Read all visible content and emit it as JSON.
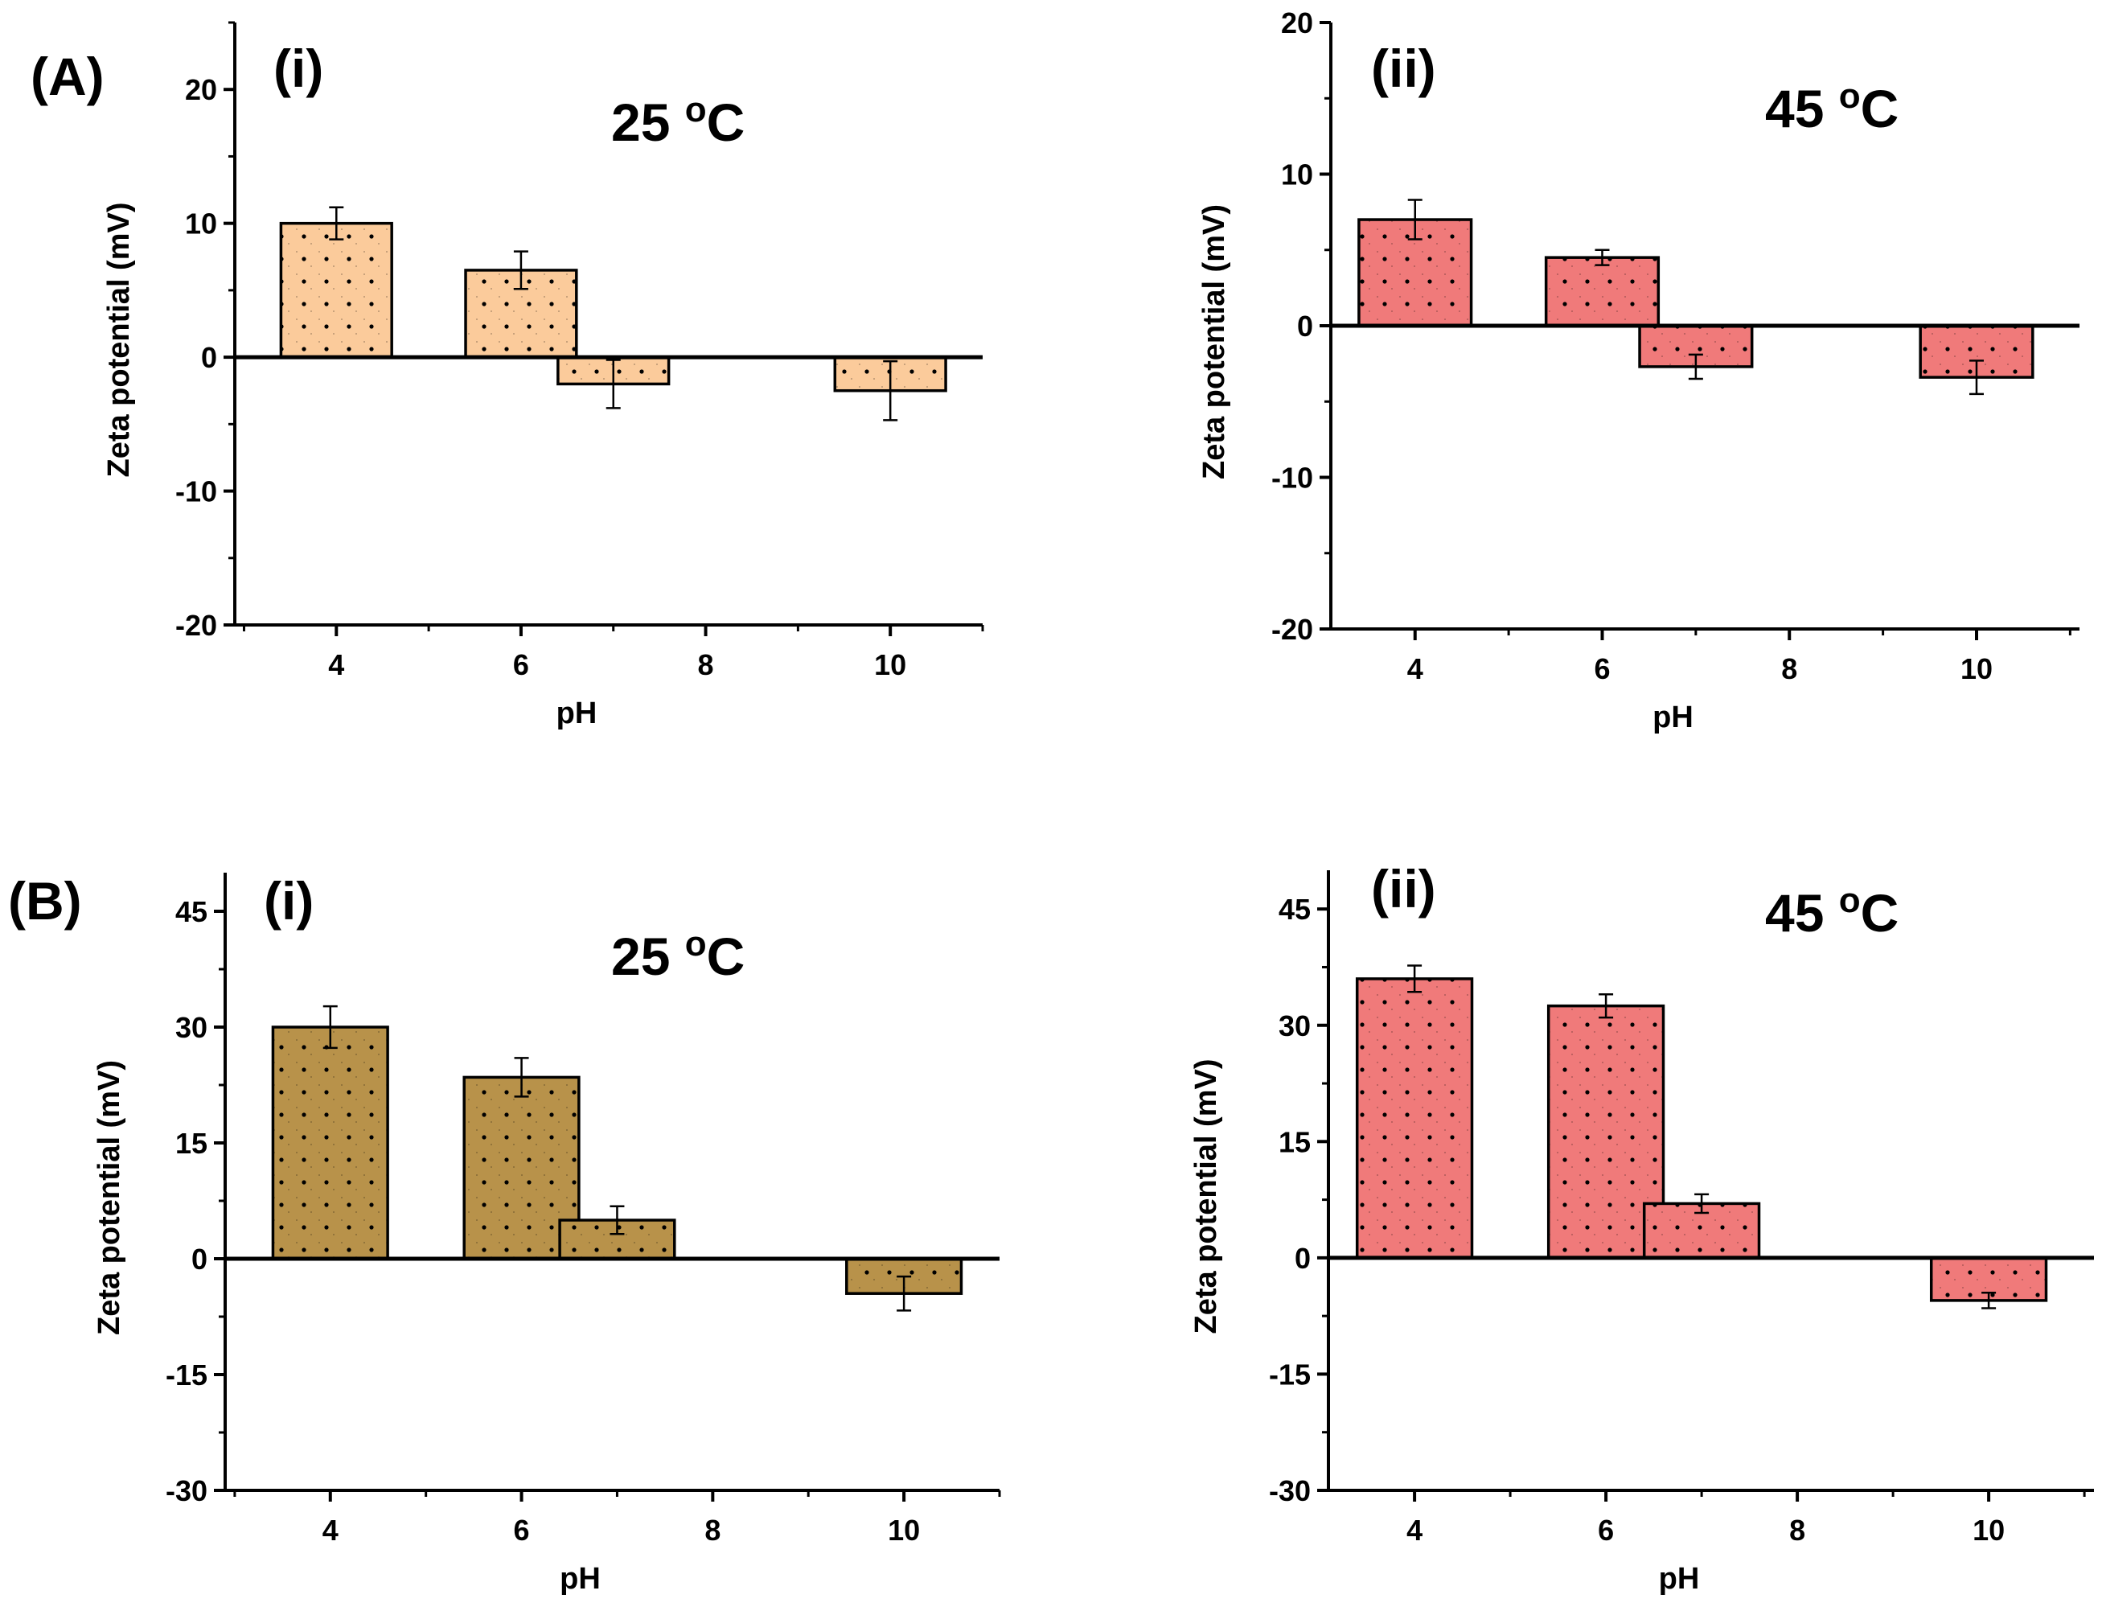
{
  "panel_labels": {
    "A": "(A)",
    "B": "(B)"
  },
  "pattern_color": "#000000",
  "chart_data": [
    {
      "type": "bar",
      "panel": "(A)",
      "sublabel": "(i)",
      "temperature": {
        "value": "25",
        "sup": "o",
        "unit": "C"
      },
      "xlabel": "pH",
      "ylabel": "Zeta potential (mV)",
      "x": [
        4,
        6,
        7,
        8,
        10
      ],
      "xticks": [
        4,
        6,
        8,
        10
      ],
      "values": [
        10.0,
        6.5,
        -2.0,
        null,
        -2.5
      ],
      "errors": [
        1.2,
        1.4,
        1.8,
        null,
        2.2
      ],
      "xlim": [
        2.9,
        11.0
      ],
      "ylim": [
        -20,
        25
      ],
      "yticks": [
        -20,
        -10,
        0,
        10,
        20
      ],
      "minor_yticks": true,
      "bar_color": "#FBCB9B",
      "bar_width": 1.2,
      "grid": false
    },
    {
      "type": "bar",
      "panel": "(A)",
      "sublabel": "(ii)",
      "temperature": {
        "value": "45",
        "sup": "o",
        "unit": "C"
      },
      "xlabel": "pH",
      "ylabel": "Zeta potential (mV)",
      "x": [
        4,
        6,
        7,
        8,
        10
      ],
      "xticks": [
        4,
        6,
        8,
        10
      ],
      "values": [
        7.0,
        4.5,
        -2.7,
        null,
        -3.4
      ],
      "errors": [
        1.3,
        0.5,
        0.8,
        null,
        1.1
      ],
      "xlim": [
        3.1,
        11.1
      ],
      "ylim": [
        -20,
        20
      ],
      "yticks": [
        -20,
        -10,
        0,
        10,
        20
      ],
      "minor_yticks": true,
      "bar_color": "#F07A7A",
      "bar_width": 1.2,
      "grid": false
    },
    {
      "type": "bar",
      "panel": "(B)",
      "sublabel": "(i)",
      "temperature": {
        "value": "25",
        "sup": "o",
        "unit": "C"
      },
      "xlabel": "pH",
      "ylabel": "Zeta potential (mV)",
      "x": [
        4,
        6,
        7,
        8,
        10
      ],
      "xticks": [
        4,
        6,
        8,
        10
      ],
      "values": [
        30.0,
        23.5,
        5.0,
        null,
        -4.5
      ],
      "errors": [
        2.7,
        2.5,
        1.8,
        null,
        2.2
      ],
      "xlim": [
        2.9,
        11.0
      ],
      "ylim": [
        -30,
        50
      ],
      "yticks": [
        -30,
        -15,
        0,
        15,
        30,
        45
      ],
      "minor_yticks": true,
      "bar_color": "#B8924A",
      "bar_width": 1.2,
      "grid": false
    },
    {
      "type": "bar",
      "panel": "(B)",
      "sublabel": "(ii)",
      "temperature": {
        "value": "45",
        "sup": "o",
        "unit": "C"
      },
      "xlabel": "pH",
      "ylabel": "Zeta potential (mV)",
      "x": [
        4,
        6,
        7,
        8,
        10
      ],
      "xticks": [
        4,
        6,
        8,
        10
      ],
      "values": [
        36.0,
        32.5,
        7.0,
        null,
        -5.5
      ],
      "errors": [
        1.7,
        1.5,
        1.2,
        null,
        1.0
      ],
      "xlim": [
        3.1,
        11.1
      ],
      "ylim": [
        -30,
        50
      ],
      "yticks": [
        -30,
        -15,
        0,
        15,
        30,
        45
      ],
      "minor_yticks": true,
      "bar_color": "#F07A7A",
      "bar_width": 1.2,
      "grid": false
    }
  ]
}
